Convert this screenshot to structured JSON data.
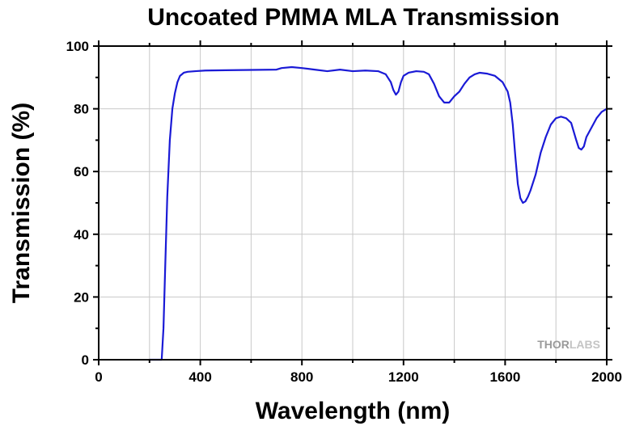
{
  "chart_data": {
    "type": "line",
    "title": "Uncoated PMMA MLA Transmission",
    "xlabel": "Wavelength (nm)",
    "ylabel": "Transmission (%)",
    "xlim": [
      0,
      2000
    ],
    "ylim": [
      0,
      100
    ],
    "xticks": [
      0,
      400,
      800,
      1200,
      1600,
      2000
    ],
    "yticks": [
      0,
      20,
      40,
      60,
      80,
      100
    ],
    "grid": true,
    "watermark": {
      "part1": "THOR",
      "part2": "LABS"
    },
    "series": [
      {
        "color": "#1a1ad6",
        "x": [
          200,
          248,
          255,
          262,
          270,
          280,
          290,
          300,
          310,
          320,
          335,
          350,
          380,
          420,
          500,
          600,
          700,
          720,
          760,
          800,
          850,
          900,
          950,
          1000,
          1050,
          1100,
          1130,
          1150,
          1160,
          1170,
          1180,
          1190,
          1200,
          1220,
          1250,
          1280,
          1300,
          1320,
          1340,
          1360,
          1380,
          1390,
          1400,
          1420,
          1440,
          1460,
          1480,
          1500,
          1530,
          1560,
          1590,
          1610,
          1620,
          1630,
          1640,
          1650,
          1660,
          1670,
          1680,
          1690,
          1700,
          1720,
          1740,
          1760,
          1780,
          1800,
          1820,
          1840,
          1860,
          1880,
          1890,
          1900,
          1910,
          1920,
          1940,
          1960,
          1980,
          2000
        ],
        "y": [
          0,
          0,
          10,
          30,
          52,
          70,
          80,
          85,
          88.5,
          90.5,
          91.5,
          91.8,
          92,
          92.2,
          92.3,
          92.4,
          92.5,
          93,
          93.3,
          93,
          92.5,
          92,
          92.5,
          92,
          92.2,
          92,
          91,
          88.5,
          86,
          84.5,
          85.5,
          88.5,
          90.5,
          91.5,
          92,
          91.8,
          91,
          88,
          84,
          82,
          82,
          83,
          84,
          85.5,
          88,
          90,
          91,
          91.5,
          91.2,
          90.5,
          88.5,
          85.5,
          82,
          75,
          65,
          56,
          51.5,
          50,
          50.5,
          52,
          54,
          59,
          66,
          71,
          75,
          77,
          77.5,
          77,
          75.5,
          70,
          67.5,
          67,
          68,
          71,
          74,
          77,
          79,
          80
        ]
      }
    ]
  }
}
